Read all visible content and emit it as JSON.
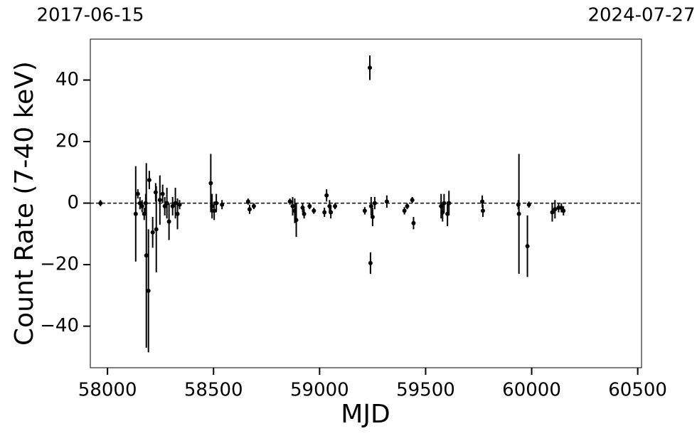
{
  "chart_data": {
    "type": "errorbar-scatter",
    "xlabel": "MJD",
    "ylabel": "Count Rate (7-40 keV)",
    "xlim": [
      57919,
      60518
    ],
    "ylim": [
      -53.5,
      53.3
    ],
    "xticks": [
      58000,
      58500,
      59000,
      59500,
      60000,
      60500
    ],
    "yticks": [
      {
        "value": -40,
        "label": "−40"
      },
      {
        "value": -20,
        "label": "−20"
      },
      0,
      20,
      40
    ],
    "top_xticks": [
      {
        "value": 57919,
        "label": "2017-06-15"
      },
      {
        "value": 60518,
        "label": "2024-07-27"
      }
    ],
    "reference_line": 0,
    "color": "#000000",
    "series": [
      {
        "name": "Count Rate",
        "x": [
          57967,
          58133,
          58143,
          58153,
          58163,
          58173,
          58180,
          58183,
          58193,
          58197,
          58213,
          58230,
          58227,
          58247,
          58260,
          58270,
          58280,
          58290,
          58307,
          58320,
          58330,
          58340,
          58487,
          58493,
          58503,
          58513,
          58540,
          58663,
          58670,
          58690,
          58860,
          58873,
          58883,
          58890,
          58920,
          58927,
          58953,
          58973,
          59023,
          59033,
          59047,
          59053,
          59073,
          59213,
          59237,
          59240,
          59243,
          59250,
          59260,
          59317,
          59400,
          59413,
          59437,
          59443,
          59573,
          59580,
          59587,
          59603,
          59610,
          59767,
          59770,
          59937,
          59940,
          59980,
          59987,
          60097,
          60110,
          60127,
          60140,
          60150
        ],
        "values": [
          0,
          -3.5,
          3,
          0,
          -1,
          -3.5,
          0,
          -17,
          -28.5,
          7.5,
          -9.5,
          -8.5,
          3.5,
          1,
          3,
          -1,
          0,
          -6,
          -1,
          0,
          -3.5,
          -0.5,
          6.5,
          -1,
          -2.5,
          0,
          -0.5,
          0.5,
          -2,
          -1,
          0.5,
          -1,
          -2.5,
          -5.5,
          -1.5,
          -3.5,
          -1,
          -2.5,
          -3,
          2.5,
          -1,
          -3,
          -1,
          -2.5,
          44,
          -19.5,
          -1,
          -4.5,
          0,
          0.5,
          -2.5,
          -1,
          1,
          -6.5,
          -1,
          -3,
          0,
          -3.5,
          0,
          0.5,
          -2.5,
          -0.5,
          -3.5,
          -14,
          -0.5,
          -3,
          -2,
          -1.5,
          -1.5,
          -2.5
        ],
        "errors": [
          1,
          15.5,
          1.5,
          2,
          2,
          2,
          3,
          30,
          20,
          3,
          5,
          14,
          3,
          8,
          3,
          3,
          5,
          6,
          3,
          5,
          5,
          1.5,
          9.5,
          4,
          3,
          3,
          1.5,
          1,
          1.5,
          1,
          1,
          3,
          4,
          5.5,
          1.5,
          1.5,
          1,
          1,
          1.5,
          2,
          2,
          2,
          1,
          1.2,
          4,
          3.5,
          3,
          3,
          2,
          2,
          1.2,
          1,
          1,
          2,
          4,
          3,
          3,
          4,
          4,
          2,
          2,
          1.5,
          19.5,
          10,
          1,
          3,
          3,
          1.5,
          1.5,
          1.5
        ]
      }
    ]
  }
}
